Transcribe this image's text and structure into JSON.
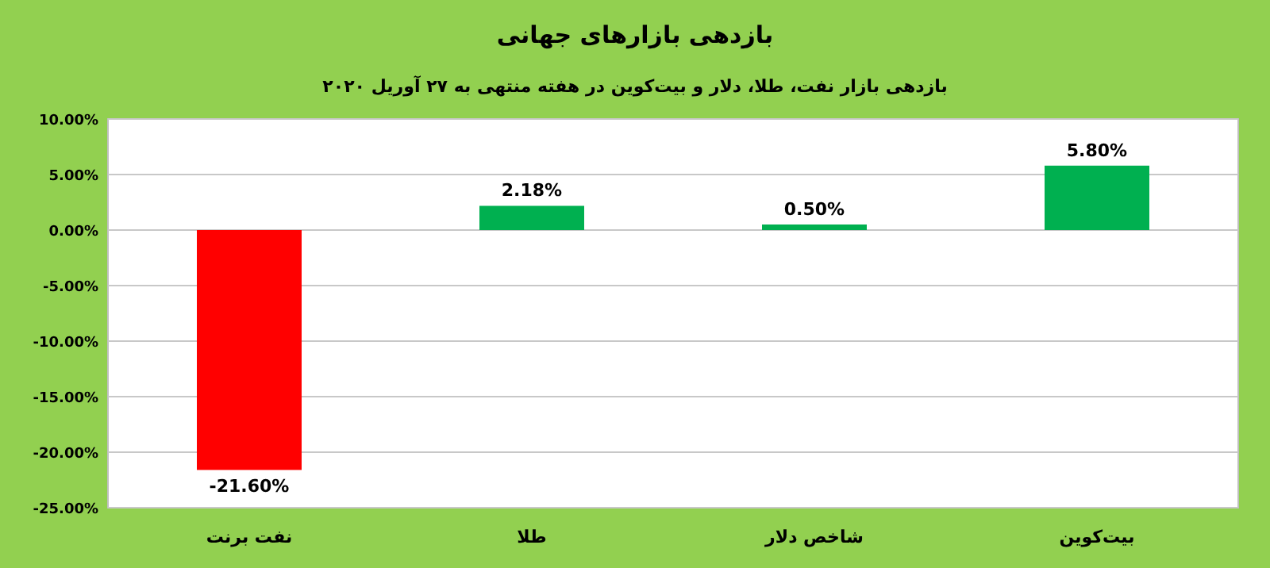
{
  "chart_data": {
    "type": "bar",
    "title": "بازدهی بازارهای جهانی",
    "subtitle": "بازدهی بازار نفت، طلا، دلار و بیت‌کوین در هفته منتهی به ۲۷ آوریل ۲۰۲۰",
    "categories": [
      "نفت برنت",
      "طلا",
      "شاخص دلار",
      "بیت‌کوین"
    ],
    "values": [
      -21.6,
      2.18,
      0.5,
      5.8
    ],
    "colors": [
      "#ff0000",
      "#00b050",
      "#00b050",
      "#00b050"
    ],
    "value_labels": [
      "-21.60%",
      "2.18%",
      "0.50%",
      "5.80%"
    ],
    "ylim": [
      -25,
      10
    ],
    "yticks": [
      {
        "value": -25,
        "label": "-25.00%"
      },
      {
        "value": -20,
        "label": "-20.00%"
      },
      {
        "value": -15,
        "label": "-15.00%"
      },
      {
        "value": -10,
        "label": "-10.00%"
      },
      {
        "value": -5,
        "label": "-5.00%"
      },
      {
        "value": 0,
        "label": "0.00%"
      },
      {
        "value": 5,
        "label": "5.00%"
      },
      {
        "value": 10,
        "label": "10.00%"
      }
    ],
    "grid": "y"
  }
}
